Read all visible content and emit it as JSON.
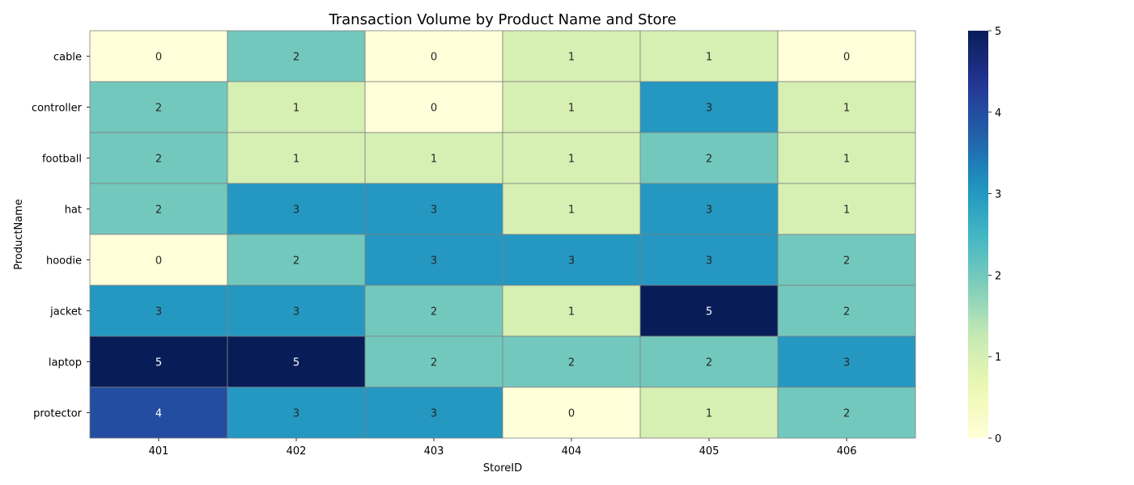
{
  "chart_data": {
    "type": "heatmap",
    "title": "Transaction Volume by Product Name and Store",
    "xlabel": "StoreID",
    "ylabel": "ProductName",
    "x_categories": [
      "401",
      "402",
      "403",
      "404",
      "405",
      "406"
    ],
    "y_categories": [
      "cable",
      "controller",
      "football",
      "hat",
      "hoodie",
      "jacket",
      "laptop",
      "protector"
    ],
    "values": [
      [
        0,
        2,
        0,
        1,
        1,
        0
      ],
      [
        2,
        1,
        0,
        1,
        3,
        1
      ],
      [
        2,
        1,
        1,
        1,
        2,
        1
      ],
      [
        2,
        3,
        3,
        1,
        3,
        1
      ],
      [
        0,
        2,
        3,
        3,
        3,
        2
      ],
      [
        3,
        3,
        2,
        1,
        5,
        2
      ],
      [
        5,
        5,
        2,
        2,
        2,
        3
      ],
      [
        4,
        3,
        3,
        0,
        1,
        2
      ]
    ],
    "annotations": true,
    "colormap": "YlGnBu",
    "color_range": [
      0,
      5
    ],
    "colorbar_ticks": [
      "0",
      "1",
      "2",
      "3",
      "4",
      "5"
    ],
    "grid_color": "#808080"
  }
}
